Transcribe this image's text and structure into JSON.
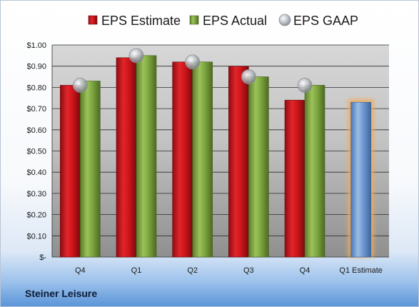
{
  "company": "Steiner Leisure",
  "colors": {
    "estimate": "#d0161b",
    "actual": "#7fa841",
    "gaap": "#b9bdc4",
    "forecast": "#6f9ad2",
    "forecast_glow": "#f3ac55"
  },
  "chart_data": {
    "type": "bar",
    "title": "",
    "xlabel": "",
    "ylabel": "",
    "ylim": [
      0,
      1.0
    ],
    "ytick_step": 0.1,
    "y_tick_labels": [
      "$-",
      "$0.10",
      "$0.20",
      "$0.30",
      "$0.40",
      "$0.50",
      "$0.60",
      "$0.70",
      "$0.80",
      "$0.90",
      "$1.00"
    ],
    "grid": true,
    "legend_position": "top",
    "categories": [
      "Q4",
      "Q1",
      "Q2",
      "Q3",
      "Q4",
      "Q1 Estimate"
    ],
    "series": [
      {
        "name": "EPS Estimate",
        "values": [
          0.81,
          0.94,
          0.92,
          0.9,
          0.74,
          null
        ]
      },
      {
        "name": "EPS Actual",
        "values": [
          0.83,
          0.95,
          0.92,
          0.85,
          0.81,
          null
        ]
      },
      {
        "name": "EPS GAAP",
        "values": [
          0.81,
          0.95,
          0.92,
          0.85,
          0.81,
          null
        ]
      }
    ],
    "forecast": {
      "category": "Q1 Estimate",
      "value": 0.73
    }
  }
}
